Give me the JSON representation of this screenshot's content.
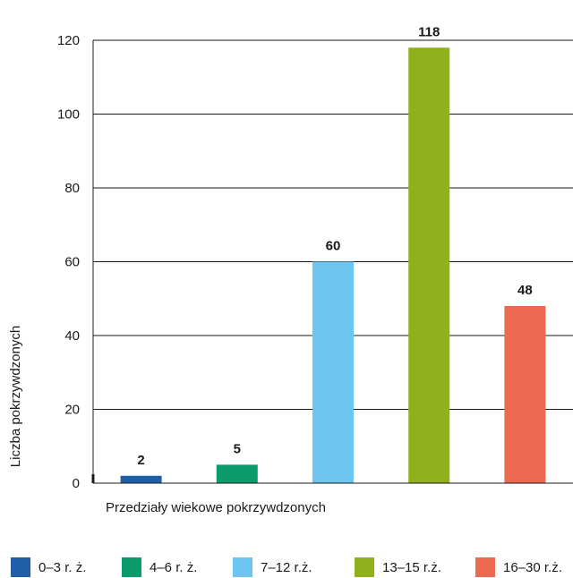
{
  "chart_data": {
    "type": "bar",
    "categories": [
      "0–3 r. ż.",
      "4–6 r. ż.",
      "7–12 r.ż.",
      "13–15 r.ż.",
      "16–30 r.ż."
    ],
    "values": [
      2,
      5,
      60,
      118,
      48
    ],
    "data_labels": [
      "2",
      "5",
      "60",
      "118",
      "48"
    ],
    "colors": [
      "#1f5fa8",
      "#0b9a6a",
      "#6cc4ef",
      "#8fb21c",
      "#ec6a4f"
    ],
    "xlabel": "Przedziały wiekowe pokrzywdzonych",
    "ylabel": "Liczba pokrzywdzonych",
    "ylim": [
      0,
      120
    ],
    "yticks": [
      "0",
      "20",
      "40",
      "60",
      "80",
      "100",
      "120"
    ],
    "grid": true,
    "legend_position": "bottom"
  }
}
